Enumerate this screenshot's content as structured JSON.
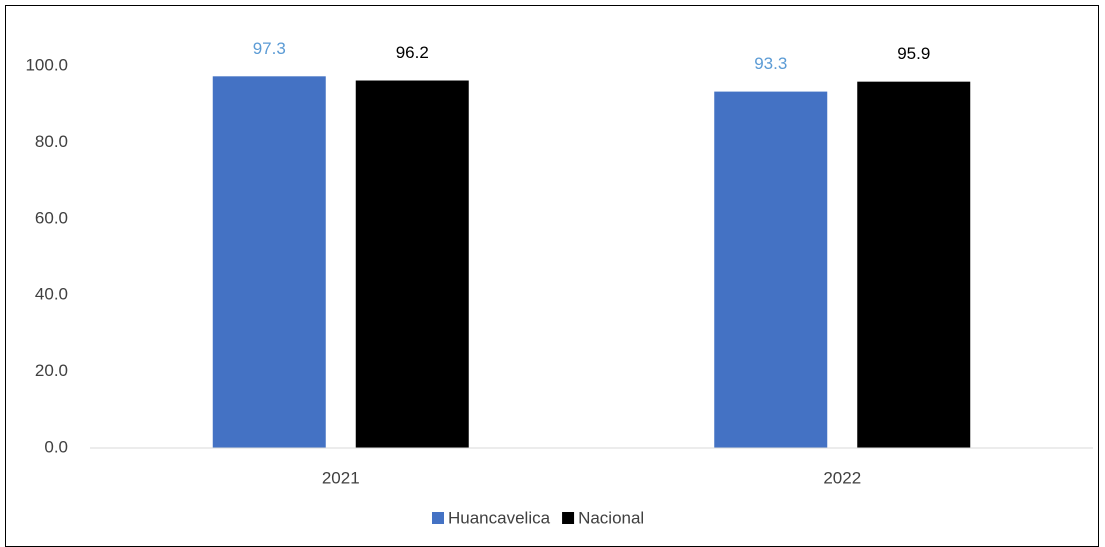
{
  "chart_data": {
    "type": "bar",
    "categories": [
      "2021",
      "2022"
    ],
    "series": [
      {
        "name": "Huancavelica",
        "color": "#4472c4",
        "label_color": "#5b9bd5",
        "values": [
          97.3,
          93.3
        ]
      },
      {
        "name": "Nacional",
        "color": "#000000",
        "label_color": "#000000",
        "values": [
          96.2,
          95.9
        ]
      }
    ],
    "ylim": [
      0,
      100
    ],
    "yticks": [
      {
        "value": 0,
        "label": "0.0"
      },
      {
        "value": 20,
        "label": "20.0"
      },
      {
        "value": 40,
        "label": "40.0"
      },
      {
        "value": 60,
        "label": "60.0"
      },
      {
        "value": 80,
        "label": "80.0"
      },
      {
        "value": 100,
        "label": "100.0"
      }
    ],
    "grid": false,
    "legend": "bottom"
  }
}
